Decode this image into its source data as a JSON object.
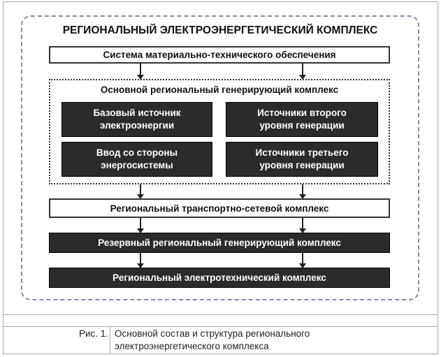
{
  "diagram": {
    "title": "РЕГИОНАЛЬНЫЙ ЭЛЕКТРОЭНЕРГЕТИЧЕСКИЙ КОМПЛЕКС",
    "supply_system": "Система материально-технического обеспечения",
    "main_generating": {
      "title": "Основной региональный генерирующий комплекс",
      "blocks": [
        "Базовый источник\nэлектроэнергии",
        "Источники второго\nуровня генерации",
        "Ввод со стороны\nэнергосистемы",
        "Источники третьего\nуровня генерации"
      ]
    },
    "transport_network": "Региональный транспортно-сетевой комплекс",
    "reserve_generating": "Резервный региональный генерирующий комплекс",
    "electrotechnical": "Региональный электротехнический комплекс"
  },
  "caption": {
    "label": "Рис. 1.",
    "text_line1": "Основной состав и структура регионального",
    "text_line2": "электроэнергетического комплекса"
  }
}
